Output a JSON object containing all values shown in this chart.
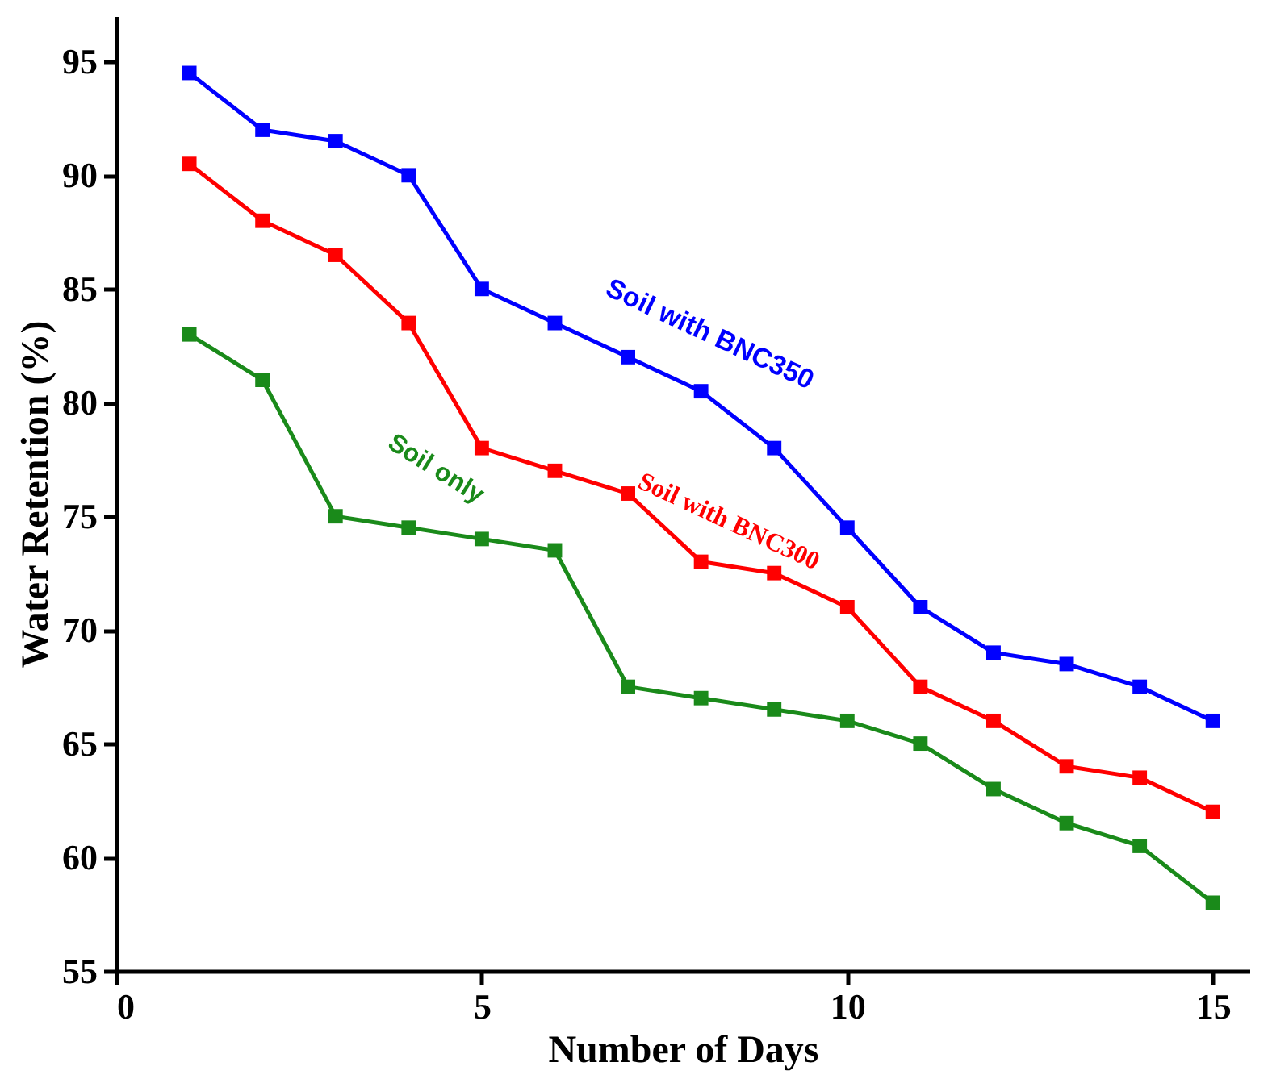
{
  "chart_data": {
    "type": "line",
    "xlabel": "Number of Days",
    "ylabel": "Water Retention (%)",
    "x": [
      1,
      2,
      3,
      4,
      5,
      6,
      7,
      8,
      9,
      10,
      11,
      12,
      13,
      14,
      15
    ],
    "xlim": [
      0,
      15.5
    ],
    "xticks": [
      0,
      5,
      10,
      15
    ],
    "ylim": [
      55,
      97
    ],
    "yticks": [
      55,
      60,
      65,
      70,
      75,
      80,
      85,
      90,
      95
    ],
    "grid": false,
    "legend": false,
    "marker": "square",
    "line_style": "solid",
    "series": [
      {
        "name": "Soil with BNC350",
        "color": "#0000ff",
        "values": [
          94.5,
          92,
          91.5,
          90,
          85,
          83.5,
          82,
          80.5,
          78,
          74.5,
          71,
          69,
          68.5,
          67.5,
          66
        ]
      },
      {
        "name": "Soil with BNC300",
        "color": "#ff0000",
        "values": [
          90.5,
          88,
          86.5,
          83.5,
          78,
          77,
          76,
          73,
          72.5,
          71,
          67.5,
          66,
          64,
          63.5,
          62
        ]
      },
      {
        "name": "Soil only",
        "color": "#1a8a1a",
        "values": [
          83,
          81,
          75,
          74.5,
          74,
          73.5,
          67.5,
          67,
          66.5,
          66,
          65,
          63,
          61.5,
          60.5,
          58
        ]
      }
    ]
  }
}
